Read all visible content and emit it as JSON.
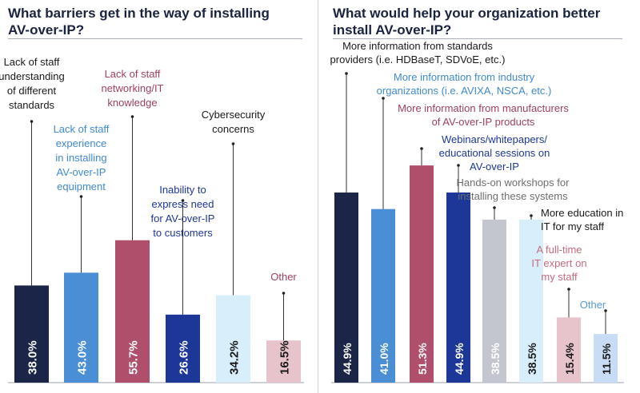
{
  "left": {
    "title_line1": "What barriers get in the way of installing",
    "title_line2": "AV-over-IP?"
  },
  "right": {
    "title_line1": "What would help your organization better",
    "title_line2": "install AV-over-IP?"
  },
  "chart_data": [
    {
      "type": "bar",
      "title": "What barriers get in the way of installing AV-over-IP?",
      "ylim": [
        0,
        100
      ],
      "grid": false,
      "categories": [
        "Lack of staff understanding of different standards",
        "Lack of staff experience in installing AV-over-IP equipment",
        "Lack of staff networking/IT knowledge",
        "Inability to express need for AV-over-IP to customers",
        "Cybersecurity concerns",
        "Other"
      ],
      "values": [
        38.0,
        43.0,
        55.7,
        26.6,
        34.2,
        16.5
      ],
      "value_labels": [
        "38.0%",
        "43.0%",
        "55.7%",
        "26.6%",
        "34.2%",
        "16.5%"
      ],
      "label_lines": [
        [
          "Lack of staff",
          "understanding",
          "of different",
          "standards"
        ],
        [
          "Lack of staff",
          "experience",
          "in installing",
          "AV-over-IP",
          "equipment"
        ],
        [
          "Lack of staff",
          "networking/IT",
          "knowledge"
        ],
        [
          "Inability to",
          "express need",
          "for AV-over-IP",
          "to customers"
        ],
        [
          "Cybersecurity",
          "concerns"
        ],
        [
          "Other"
        ]
      ],
      "colors": [
        "#1b2547",
        "#4a8fd6",
        "#b04f6b",
        "#1d3799",
        "#d8eefb",
        "#e7c4cb"
      ],
      "label_colors": [
        "#1a1a1a",
        "#3f8ad0",
        "#a04060",
        "#1d3799",
        "#1a1a1a",
        "#a04060"
      ],
      "value_text_colors": [
        "#ffffff",
        "#ffffff",
        "#ffffff",
        "#ffffff",
        "#1a1a1a",
        "#1a1a1a"
      ]
    },
    {
      "type": "bar",
      "title": "What would help your organization better install AV-over-IP?",
      "ylim": [
        0,
        100
      ],
      "grid": false,
      "categories": [
        "More information from standards providers (i.e. HDBaseT, SDVoE, etc.)",
        "More information from industry organizations (i.e. AVIXA, NSCA, etc.)",
        "More information from manufacturers of AV-over-IP products",
        "Webinars/whitepapers/educational sessions on AV-over-IP",
        "Hands-on workshops for installing these systems",
        "More education in IT for my staff",
        "A full-time IT expert on my staff",
        "Other"
      ],
      "values": [
        44.9,
        41.0,
        51.3,
        44.9,
        38.5,
        38.5,
        15.4,
        11.5
      ],
      "value_labels": [
        "44.9%",
        "41.0%",
        "51.3%",
        "44.9%",
        "38.5%",
        "38.5%",
        "15.4%",
        "11.5%"
      ],
      "label_lines": [
        [
          "More information from standards",
          "providers (i.e. HDBaseT, SDVoE, etc.)"
        ],
        [
          "More information from industry",
          "organizations (i.e. AVIXA, NSCA, etc.)"
        ],
        [
          "More information from manufacturers",
          "of AV-over-IP products"
        ],
        [
          "Webinars/whitepapers/",
          "educational sessions on",
          "AV-over-IP"
        ],
        [
          "Hands-on workshops for",
          "installing these systems"
        ],
        [
          "More education in",
          "IT for my staff"
        ],
        [
          "A full-time",
          "IT expert on",
          "my staff"
        ],
        [
          "Other"
        ]
      ],
      "colors": [
        "#1b2547",
        "#4a8fd6",
        "#b04f6b",
        "#1d3799",
        "#c4c6cf",
        "#d8eefb",
        "#e7c4cb",
        "#c8ddf5"
      ],
      "label_colors": [
        "#1a1a1a",
        "#3f8ad0",
        "#a04060",
        "#1d3799",
        "#6e6e6e",
        "#1a1a1a",
        "#c76a7e",
        "#5a9ad8"
      ],
      "value_text_colors": [
        "#ffffff",
        "#ffffff",
        "#ffffff",
        "#ffffff",
        "#ffffff",
        "#1a1a1a",
        "#1a1a1a",
        "#1a1a1a"
      ]
    }
  ]
}
